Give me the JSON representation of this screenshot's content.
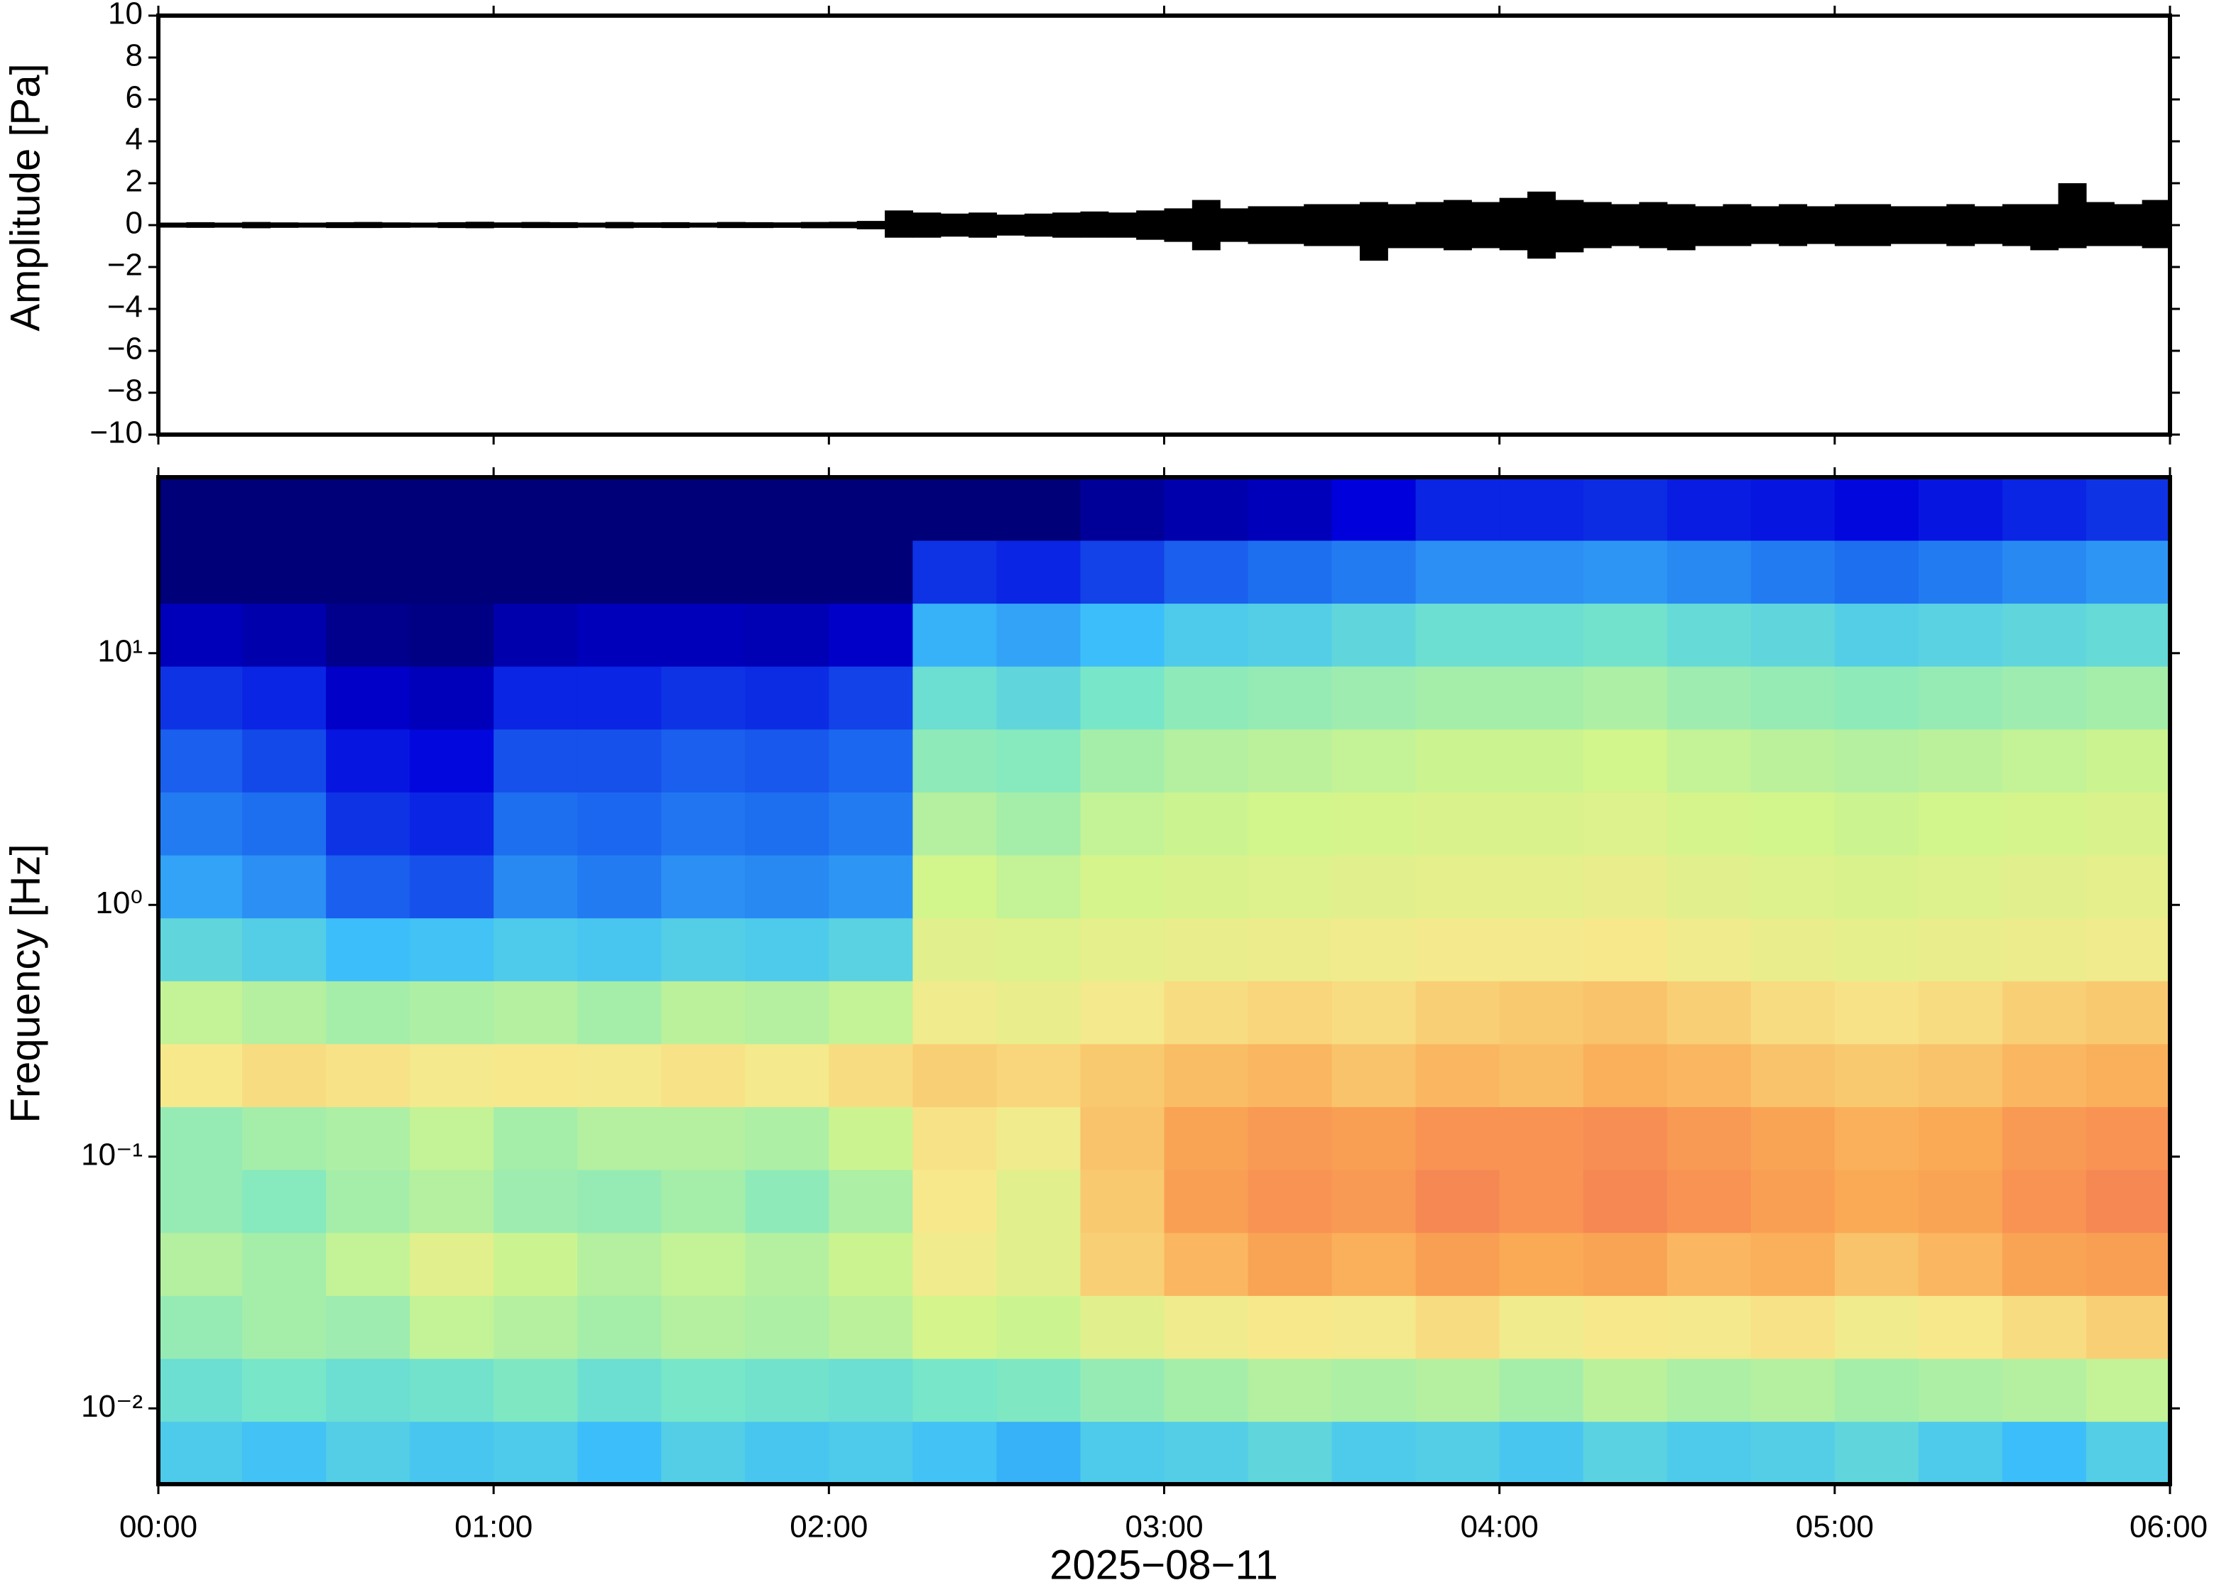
{
  "chart_data": [
    {
      "type": "envelope",
      "ylabel": "Amplitude [Pa]",
      "color": "#000000",
      "xlim": [
        0,
        360
      ],
      "xticks": [
        0,
        60,
        120,
        180,
        240,
        300,
        360
      ],
      "ylim": [
        -10,
        10
      ],
      "yticks": [
        {
          "value": -10,
          "label": "−10"
        },
        {
          "value": -8,
          "label": "−8"
        },
        {
          "value": -6,
          "label": "−6"
        },
        {
          "value": -4,
          "label": "−4"
        },
        {
          "value": -2,
          "label": "−2"
        },
        0,
        2,
        4,
        6,
        8,
        10
      ],
      "values_max": [
        0.12,
        0.14,
        0.12,
        0.15,
        0.13,
        0.12,
        0.14,
        0.15,
        0.13,
        0.12,
        0.14,
        0.16,
        0.13,
        0.15,
        0.14,
        0.12,
        0.15,
        0.13,
        0.14,
        0.12,
        0.15,
        0.14,
        0.13,
        0.15,
        0.16,
        0.2,
        0.7,
        0.6,
        0.55,
        0.6,
        0.5,
        0.55,
        0.6,
        0.65,
        0.6,
        0.7,
        0.8,
        1.2,
        0.8,
        0.9,
        0.9,
        1.0,
        1.0,
        1.1,
        1.0,
        1.1,
        1.2,
        1.1,
        1.3,
        1.6,
        1.2,
        1.1,
        1.0,
        1.1,
        1.0,
        0.9,
        1.0,
        0.9,
        1.0,
        0.9,
        1.0,
        1.0,
        0.9,
        0.9,
        1.0,
        0.9,
        1.0,
        1.0,
        2.0,
        1.1,
        1.0,
        1.2
      ],
      "values_min": [
        -0.12,
        -0.13,
        -0.12,
        -0.15,
        -0.13,
        -0.12,
        -0.14,
        -0.14,
        -0.13,
        -0.12,
        -0.14,
        -0.15,
        -0.13,
        -0.14,
        -0.14,
        -0.12,
        -0.15,
        -0.13,
        -0.14,
        -0.12,
        -0.14,
        -0.14,
        -0.13,
        -0.15,
        -0.15,
        -0.2,
        -0.6,
        -0.6,
        -0.55,
        -0.6,
        -0.5,
        -0.55,
        -0.6,
        -0.6,
        -0.6,
        -0.7,
        -0.8,
        -1.2,
        -0.8,
        -0.9,
        -0.9,
        -1.0,
        -1.0,
        -1.7,
        -1.1,
        -1.1,
        -1.2,
        -1.1,
        -1.2,
        -1.6,
        -1.3,
        -1.1,
        -1.0,
        -1.1,
        -1.2,
        -1.0,
        -1.0,
        -0.9,
        -1.0,
        -0.9,
        -1.0,
        -1.0,
        -0.9,
        -0.9,
        -1.0,
        -0.9,
        -1.0,
        -1.2,
        -1.1,
        -1.0,
        -1.0,
        -1.1
      ]
    },
    {
      "type": "heatmap",
      "ylabel": "Frequency [Hz]",
      "xlabel": "2025−08−11",
      "log_y": true,
      "xlim": [
        0,
        360
      ],
      "xticks": [
        {
          "value": 0,
          "label": "00:00"
        },
        {
          "value": 60,
          "label": "01:00"
        },
        {
          "value": 120,
          "label": "02:00"
        },
        {
          "value": 180,
          "label": "03:00"
        },
        {
          "value": 240,
          "label": "04:00"
        },
        {
          "value": 300,
          "label": "05:00"
        },
        {
          "value": 360,
          "label": "06:00"
        }
      ],
      "ylim": [
        0.005,
        50
      ],
      "yticks": [
        {
          "value": 0.01,
          "label": "10⁻²"
        },
        {
          "value": 0.1,
          "label": "10⁻¹"
        },
        {
          "value": 1,
          "label": "10⁰"
        },
        {
          "value": 10,
          "label": "10¹"
        }
      ],
      "zlim": [
        0,
        10
      ],
      "z": [
        [
          4.5,
          4.3,
          4.6,
          4.4,
          4.5,
          4.2,
          4.6,
          4.4,
          4.5,
          4.3,
          4.0,
          4.5,
          4.6,
          4.8,
          4.5,
          4.6,
          4.4,
          4.7,
          4.5,
          4.6,
          4.8,
          4.5,
          4.2,
          4.6
        ],
        [
          5.0,
          5.2,
          5.0,
          5.1,
          5.3,
          5.0,
          5.2,
          5.1,
          5.0,
          5.2,
          5.3,
          5.6,
          5.8,
          6.0,
          5.9,
          6.0,
          5.8,
          6.1,
          5.9,
          6.0,
          5.8,
          5.9,
          6.0,
          6.2
        ],
        [
          5.6,
          5.8,
          5.7,
          6.2,
          6.0,
          5.8,
          6.0,
          5.9,
          6.1,
          6.5,
          6.3,
          6.8,
          7.2,
          7.4,
          7.3,
          7.6,
          7.2,
          7.4,
          7.3,
          7.5,
          7.2,
          7.4,
          7.6,
          7.8
        ],
        [
          6.0,
          5.8,
          6.2,
          6.8,
          6.3,
          6.0,
          6.2,
          6.0,
          6.3,
          7.2,
          6.8,
          7.8,
          8.2,
          8.5,
          8.3,
          8.6,
          8.4,
          8.5,
          8.2,
          8.3,
          8.0,
          8.2,
          8.5,
          8.6
        ],
        [
          5.6,
          5.4,
          5.8,
          6.0,
          5.7,
          5.6,
          5.8,
          5.5,
          5.9,
          7.4,
          6.8,
          7.9,
          8.6,
          8.8,
          8.7,
          9.0,
          8.8,
          9.0,
          8.8,
          8.6,
          8.4,
          8.5,
          8.8,
          9.0
        ],
        [
          5.6,
          5.8,
          5.9,
          6.2,
          5.8,
          6.0,
          6.0,
          5.9,
          6.3,
          7.5,
          7.2,
          8.0,
          8.5,
          8.7,
          8.6,
          8.8,
          8.8,
          8.9,
          8.7,
          8.5,
          8.3,
          8.4,
          8.7,
          8.8
        ],
        [
          7.4,
          7.6,
          7.5,
          7.3,
          7.4,
          7.3,
          7.5,
          7.3,
          7.6,
          7.8,
          7.7,
          7.9,
          8.1,
          8.2,
          8.0,
          8.2,
          8.1,
          8.3,
          8.2,
          8.0,
          7.9,
          8.0,
          8.2,
          8.3
        ],
        [
          6.2,
          6.0,
          5.8,
          5.9,
          6.0,
          5.8,
          6.1,
          6.0,
          6.2,
          7.2,
          7.0,
          7.3,
          7.6,
          7.7,
          7.6,
          7.8,
          7.9,
          8.0,
          7.8,
          7.6,
          7.5,
          7.6,
          7.8,
          7.9
        ],
        [
          4.8,
          4.6,
          4.2,
          4.3,
          4.5,
          4.4,
          4.6,
          4.5,
          4.7,
          6.8,
          6.7,
          6.9,
          7.0,
          7.1,
          7.2,
          7.3,
          7.3,
          7.4,
          7.2,
          7.0,
          6.9,
          7.0,
          7.1,
          7.2
        ],
        [
          3.8,
          3.5,
          2.8,
          2.6,
          3.4,
          3.2,
          3.5,
          3.4,
          3.6,
          6.4,
          6.2,
          6.5,
          6.6,
          6.7,
          6.8,
          6.9,
          6.9,
          7.0,
          6.8,
          6.7,
          6.6,
          6.7,
          6.8,
          6.9
        ],
        [
          3.2,
          3.0,
          2.2,
          2.0,
          3.0,
          2.9,
          3.1,
          3.0,
          3.2,
          6.0,
          5.8,
          6.2,
          6.3,
          6.4,
          6.5,
          6.6,
          6.6,
          6.7,
          6.5,
          6.4,
          6.3,
          6.4,
          6.5,
          6.6
        ],
        [
          2.8,
          2.5,
          1.8,
          1.6,
          2.6,
          2.6,
          2.8,
          2.7,
          2.9,
          5.5,
          5.4,
          5.8,
          6.0,
          6.1,
          6.2,
          6.3,
          6.3,
          6.4,
          6.2,
          6.1,
          6.0,
          6.1,
          6.2,
          6.3
        ],
        [
          2.2,
          2.0,
          1.2,
          1.0,
          2.0,
          2.0,
          2.2,
          2.1,
          2.4,
          5.0,
          4.8,
          5.2,
          5.5,
          5.6,
          5.7,
          5.8,
          5.8,
          5.9,
          5.7,
          5.6,
          5.5,
          5.6,
          5.7,
          5.8
        ],
        [
          1.0,
          0.8,
          0.3,
          0.2,
          0.8,
          1.0,
          1.0,
          0.9,
          1.2,
          4.0,
          3.8,
          4.2,
          4.5,
          4.6,
          4.8,
          5.0,
          5.0,
          5.1,
          4.9,
          4.8,
          4.6,
          4.7,
          4.8,
          4.9
        ],
        [
          0.0,
          0.0,
          0.0,
          0.0,
          0.0,
          0.0,
          0.0,
          0.0,
          0.0,
          2.2,
          2.0,
          2.4,
          2.8,
          3.0,
          3.2,
          3.5,
          3.5,
          3.6,
          3.4,
          3.2,
          3.0,
          3.2,
          3.4,
          3.6
        ],
        [
          0,
          0,
          0,
          0,
          0,
          0,
          0,
          0,
          0,
          0,
          0,
          0.5,
          0.8,
          1.0,
          1.5,
          2.0,
          2.0,
          2.1,
          1.9,
          1.8,
          1.6,
          1.8,
          2.0,
          2.2
        ]
      ]
    }
  ]
}
